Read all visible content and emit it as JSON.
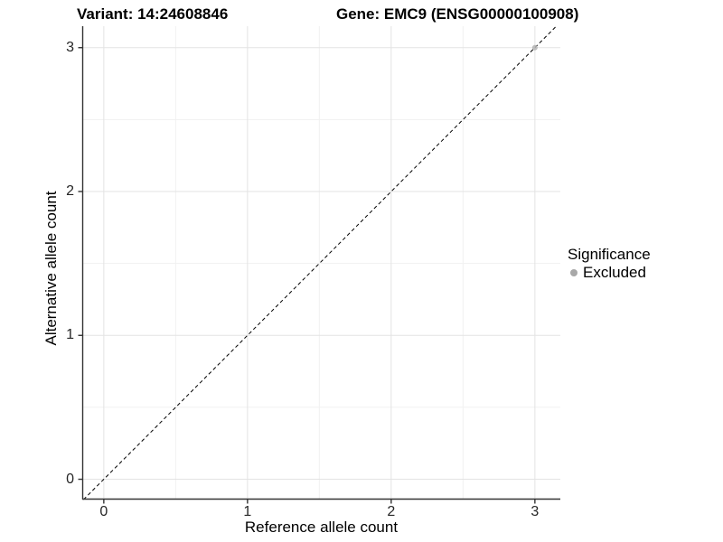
{
  "titles": {
    "variant": "Variant: 14:24608846",
    "gene": "Gene: EMC9 (ENSG00000100908)"
  },
  "chart_data": {
    "type": "scatter",
    "title": "Variant: 14:24608846   Gene: EMC9 (ENSG00000100908)",
    "xlabel": "Reference allele count",
    "ylabel": "Alternative allele count",
    "xlim": [
      -0.15,
      3.177
    ],
    "ylim": [
      -0.141,
      3.149
    ],
    "x_ticks": [
      0,
      1,
      2,
      3
    ],
    "y_ticks": [
      0,
      1,
      2,
      3
    ],
    "x_minor_ticks": [
      0.5,
      1.5,
      2.5
    ],
    "y_minor_ticks": [
      0.5,
      1.5,
      2.5
    ],
    "grid": "on",
    "identity_line": {
      "style": "dashed",
      "from": [
        -0.141,
        -0.141
      ],
      "to": [
        3.149,
        3.149
      ]
    },
    "series": [
      {
        "name": "Excluded",
        "points": [
          {
            "x": 3,
            "y": 3
          }
        ],
        "color": "#b4b4b4",
        "opacity": 0.85,
        "radius": 3
      }
    ],
    "legend": {
      "title": "Significance",
      "position": "right",
      "items": [
        {
          "label": "Excluded",
          "color": "#a8a8a8"
        }
      ]
    }
  },
  "colors": {
    "background": "#ffffff",
    "axis_line": "#333333",
    "tick_mark": "#333333",
    "grid_major": "#e3e3e3",
    "grid_minor": "#f1f1f1",
    "identity_line": "#000000",
    "tick_text": "#262626",
    "title_text": "#000000"
  }
}
